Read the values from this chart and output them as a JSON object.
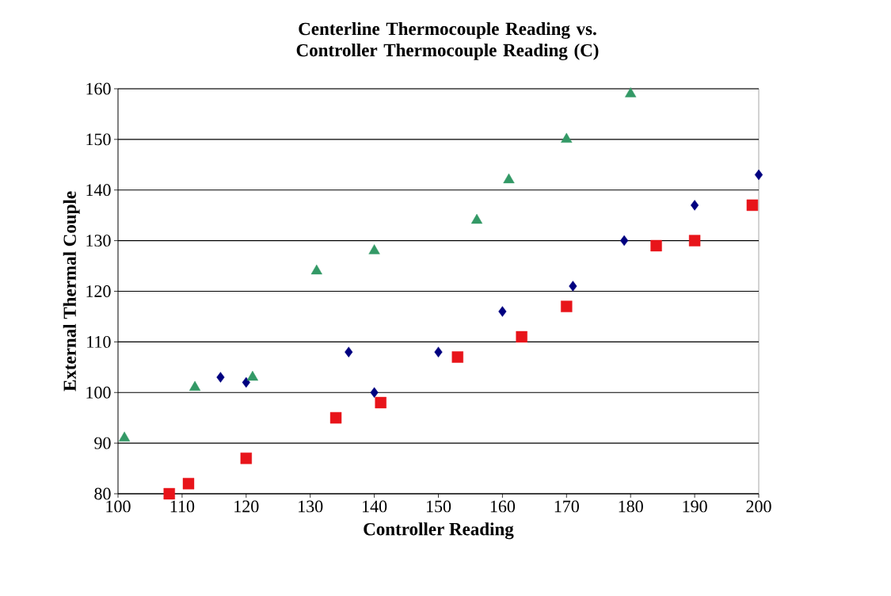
{
  "chart_data": {
    "type": "scatter",
    "title": "Centerline Thermocouple Reading vs. Controller Thermocouple Reading (C)",
    "xlabel": "Controller Reading",
    "ylabel": "External Thermal Couple",
    "xlim": [
      100,
      200
    ],
    "xticks": [
      100,
      110,
      120,
      130,
      140,
      150,
      160,
      170,
      180,
      190,
      200
    ],
    "ylim": [
      80,
      160
    ],
    "yticks": [
      80,
      90,
      100,
      110,
      120,
      130,
      140,
      150,
      160
    ],
    "grid": "y",
    "series": [
      {
        "color": "#000080",
        "marker": "diamond",
        "x": [
          116,
          120,
          136,
          140,
          150,
          160,
          171,
          179,
          190,
          200
        ],
        "values": [
          103,
          102,
          108,
          100,
          108,
          116,
          121,
          130,
          137,
          143
        ]
      },
      {
        "color": "#e8141a",
        "marker": "square",
        "x": [
          108,
          111,
          120,
          134,
          141,
          153,
          163,
          170,
          184,
          190,
          199
        ],
        "values": [
          80,
          82,
          87,
          95,
          98,
          107,
          111,
          117,
          129,
          130,
          137
        ]
      },
      {
        "color": "#339966",
        "marker": "triangle",
        "x": [
          101,
          112,
          121,
          131,
          140,
          156,
          161,
          170,
          180
        ],
        "values": [
          91,
          101,
          103,
          124,
          128,
          134,
          142,
          150,
          159
        ]
      }
    ]
  }
}
